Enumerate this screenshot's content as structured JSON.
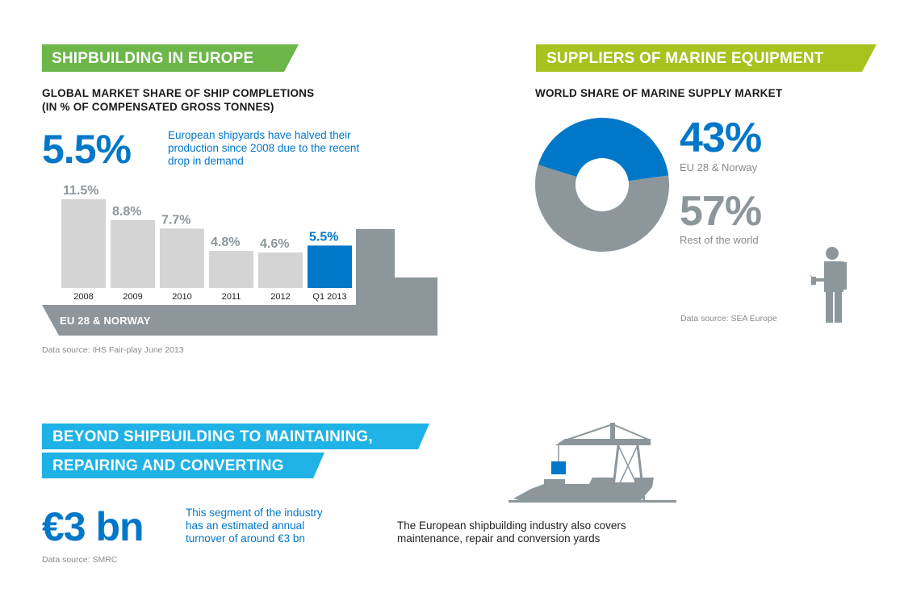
{
  "colors": {
    "green": "#6cb64a",
    "lime": "#a8c21e",
    "cyan": "#1eb2e6",
    "blue": "#0077c8",
    "bar_grey": "#d4d4d4",
    "ship_grey": "#8c969b"
  },
  "section1": {
    "banner": "SHIPBUILDING IN EUROPE",
    "subtitle_line1": "GLOBAL MARKET SHARE OF SHIP COMPLETIONS",
    "subtitle_line2": "(IN % OF COMPENSATED GROSS TONNES)",
    "big_value": "5.5%",
    "note_line1": "European shipyards have halved their",
    "note_line2": "production since 2008 due to the recent",
    "note_line3": "drop in demand",
    "hull_label": "EU 28 & NORWAY",
    "source": "Data source: IHS Fair-play June 2013"
  },
  "section2": {
    "banner": "SUPPLIERS OF MARINE EQUIPMENT",
    "subtitle": "WORLD SHARE OF MARINE SUPPLY MARKET",
    "value1": "43%",
    "label1": "EU 28 & Norway",
    "value2": "57%",
    "label2": "Rest of the world",
    "source": "Data source: SEA Europe",
    "icon": "worker-with-wrench-icon"
  },
  "section3": {
    "banner_line1": "BEYOND SHIPBUILDING TO MAINTAINING,",
    "banner_line2": "REPAIRING AND CONVERTING",
    "big_value": "€3 bn",
    "note_line1": "This segment of the industry",
    "note_line2": "has an estimated annual",
    "note_line3": "turnover of around €3 bn",
    "source": "Data source: SMRC",
    "caption_line1": "The European shipbuilding industry also covers",
    "caption_line2": "maintenance, repair and conversion yards",
    "icon": "crane-ship-icon"
  },
  "chart_data": [
    {
      "type": "bar",
      "title": "GLOBAL MARKET SHARE OF SHIP COMPLETIONS (IN % OF COMPENSATED GROSS TONNES)",
      "categories": [
        "2008",
        "2009",
        "2010",
        "2011",
        "2012",
        "Q1 2013"
      ],
      "values": [
        11.5,
        8.8,
        7.7,
        4.8,
        4.6,
        5.5
      ],
      "value_labels": [
        "11.5%",
        "8.8%",
        "7.7%",
        "4.8%",
        "4.6%",
        "5.5%"
      ],
      "highlight_index": 5,
      "ylim": [
        0,
        11.5
      ]
    },
    {
      "type": "pie",
      "title": "WORLD SHARE OF MARINE SUPPLY MARKET",
      "labels": [
        "EU 28 & Norway",
        "Rest of the world"
      ],
      "values": [
        43,
        57
      ],
      "colors": [
        "#0077c8",
        "#8c969b"
      ]
    }
  ]
}
